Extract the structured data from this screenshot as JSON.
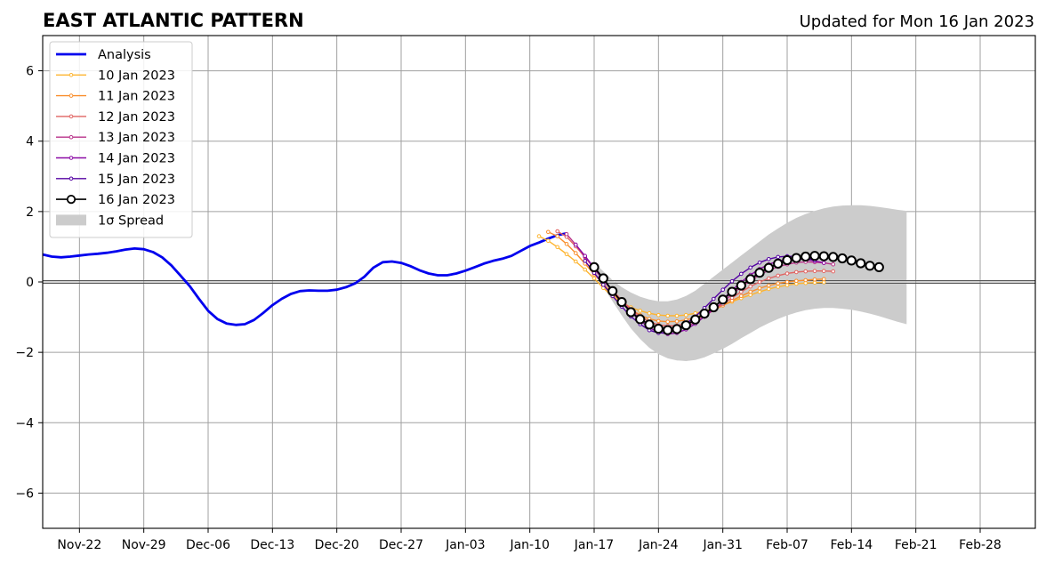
{
  "chart_data": {
    "type": "line",
    "title": "EAST ATLANTIC PATTERN",
    "subtitle": "Updated for Mon 16 Jan 2023",
    "xlabel": "",
    "ylabel": "",
    "x_axis": {
      "type": "date",
      "min": "2022-11-18",
      "max": "2023-03-06"
    },
    "ylim": [
      -7,
      7
    ],
    "yticks": [
      -6,
      -4,
      -2,
      0,
      2,
      4,
      6
    ],
    "ytick_labels": [
      "−6",
      "−4",
      "−2",
      "0",
      "2",
      "4",
      "6"
    ],
    "xticks": [
      {
        "date": "2022-11-22",
        "label": "Nov-22"
      },
      {
        "date": "2022-11-29",
        "label": "Nov-29"
      },
      {
        "date": "2022-12-06",
        "label": "Dec-06"
      },
      {
        "date": "2022-12-13",
        "label": "Dec-13"
      },
      {
        "date": "2022-12-20",
        "label": "Dec-20"
      },
      {
        "date": "2022-12-27",
        "label": "Dec-27"
      },
      {
        "date": "2023-01-03",
        "label": "Jan-03"
      },
      {
        "date": "2023-01-10",
        "label": "Jan-10"
      },
      {
        "date": "2023-01-17",
        "label": "Jan-17"
      },
      {
        "date": "2023-01-24",
        "label": "Jan-24"
      },
      {
        "date": "2023-01-31",
        "label": "Jan-31"
      },
      {
        "date": "2023-02-07",
        "label": "Feb-07"
      },
      {
        "date": "2023-02-14",
        "label": "Feb-14"
      },
      {
        "date": "2023-02-21",
        "label": "Feb-21"
      },
      {
        "date": "2023-02-28",
        "label": "Feb-28"
      }
    ],
    "grid": true,
    "legend_position": "top-left",
    "legend": [
      "Analysis",
      "10 Jan 2023",
      "11 Jan 2023",
      "12 Jan 2023",
      "13 Jan 2023",
      "14 Jan 2023",
      "15 Jan 2023",
      "16 Jan 2023",
      "1σ Spread"
    ],
    "analysis": {
      "name": "Analysis",
      "color": "#0000ee",
      "start_date": "2022-11-18",
      "values": [
        0.78,
        0.72,
        0.7,
        0.72,
        0.75,
        0.78,
        0.8,
        0.83,
        0.87,
        0.92,
        0.95,
        0.93,
        0.85,
        0.7,
        0.47,
        0.18,
        -0.12,
        -0.48,
        -0.82,
        -1.05,
        -1.18,
        -1.22,
        -1.2,
        -1.08,
        -0.88,
        -0.66,
        -0.48,
        -0.34,
        -0.26,
        -0.24,
        -0.25,
        -0.25,
        -0.22,
        -0.15,
        -0.04,
        0.15,
        0.41,
        0.56,
        0.58,
        0.54,
        0.45,
        0.33,
        0.24,
        0.19,
        0.19,
        0.24,
        0.32,
        0.42,
        0.52,
        0.6,
        0.66,
        0.74,
        0.88,
        1.02,
        1.12,
        1.23,
        1.33,
        1.38
      ]
    },
    "forecasts": [
      {
        "name": "10 Jan 2023",
        "color": "#fdb42f",
        "start_date": "2023-01-11",
        "values": [
          1.3,
          1.17,
          0.99,
          0.79,
          0.58,
          0.35,
          0.1,
          -0.17,
          -0.41,
          -0.59,
          -0.72,
          -0.82,
          -0.89,
          -0.94,
          -0.96,
          -0.96,
          -0.94,
          -0.89,
          -0.83,
          -0.75,
          -0.66,
          -0.56,
          -0.46,
          -0.37,
          -0.28,
          -0.2,
          -0.14,
          -0.09,
          -0.05,
          -0.03,
          -0.02,
          -0.01
        ]
      },
      {
        "name": "11 Jan 2023",
        "color": "#f98e2c",
        "start_date": "2023-01-12",
        "values": [
          1.42,
          1.3,
          1.08,
          0.82,
          0.52,
          0.22,
          -0.06,
          -0.33,
          -0.57,
          -0.78,
          -0.94,
          -1.05,
          -1.11,
          -1.13,
          -1.12,
          -1.08,
          -1.01,
          -0.92,
          -0.8,
          -0.67,
          -0.53,
          -0.4,
          -0.28,
          -0.18,
          -0.1,
          -0.04,
          0.0,
          0.03,
          0.05,
          0.07,
          0.08
        ]
      },
      {
        "name": "12 Jan 2023",
        "color": "#e16462",
        "start_date": "2023-01-13",
        "values": [
          1.44,
          1.28,
          1.01,
          0.7,
          0.38,
          0.06,
          -0.24,
          -0.52,
          -0.77,
          -0.98,
          -1.13,
          -1.22,
          -1.25,
          -1.24,
          -1.18,
          -1.08,
          -0.96,
          -0.8,
          -0.63,
          -0.45,
          -0.28,
          -0.13,
          0.0,
          0.1,
          0.18,
          0.24,
          0.28,
          0.3,
          0.31,
          0.31,
          0.3
        ]
      },
      {
        "name": "13 Jan 2023",
        "color": "#b83289",
        "start_date": "2023-01-14",
        "values": [
          1.36,
          1.06,
          0.72,
          0.38,
          0.05,
          -0.27,
          -0.56,
          -0.82,
          -1.04,
          -1.21,
          -1.32,
          -1.36,
          -1.34,
          -1.27,
          -1.15,
          -0.99,
          -0.79,
          -0.57,
          -0.35,
          -0.14,
          0.04,
          0.2,
          0.33,
          0.43,
          0.5,
          0.55,
          0.57,
          0.56,
          0.54,
          0.5
        ]
      },
      {
        "name": "14 Jan 2023",
        "color": "#8b0aa5",
        "start_date": "2023-01-15",
        "values": [
          1.06,
          0.74,
          0.4,
          0.06,
          -0.27,
          -0.57,
          -0.85,
          -1.1,
          -1.3,
          -1.43,
          -1.48,
          -1.45,
          -1.35,
          -1.19,
          -0.98,
          -0.74,
          -0.49,
          -0.24,
          0.0,
          0.2,
          0.37,
          0.5,
          0.59,
          0.64,
          0.66,
          0.64,
          0.6,
          0.54
        ]
      },
      {
        "name": "15 Jan 2023",
        "color": "#5402a3",
        "start_date": "2023-01-16",
        "values": [
          0.6,
          0.26,
          -0.08,
          -0.4,
          -0.7,
          -0.98,
          -1.2,
          -1.37,
          -1.45,
          -1.44,
          -1.35,
          -1.19,
          -0.98,
          -0.74,
          -0.48,
          -0.22,
          0.02,
          0.23,
          0.41,
          0.55,
          0.65,
          0.71,
          0.73,
          0.72,
          0.68,
          0.62
        ]
      }
    ],
    "current": {
      "name": "16 Jan 2023",
      "color": "#000000",
      "start_date": "2023-01-17",
      "values": [
        0.42,
        0.1,
        -0.26,
        -0.57,
        -0.86,
        -1.06,
        -1.21,
        -1.33,
        -1.37,
        -1.34,
        -1.23,
        -1.07,
        -0.9,
        -0.72,
        -0.5,
        -0.28,
        -0.1,
        0.08,
        0.26,
        0.4,
        0.52,
        0.62,
        0.68,
        0.72,
        0.74,
        0.73,
        0.71,
        0.67,
        0.61,
        0.53,
        0.46,
        0.42
      ]
    },
    "spread": {
      "name": "1σ Spread",
      "color": "#cccccc",
      "start_date": "2023-01-17",
      "upper": [
        0.55,
        0.3,
        0.05,
        -0.15,
        -0.3,
        -0.42,
        -0.5,
        -0.55,
        -0.55,
        -0.5,
        -0.4,
        -0.25,
        -0.05,
        0.15,
        0.35,
        0.55,
        0.75,
        0.95,
        1.15,
        1.35,
        1.52,
        1.68,
        1.82,
        1.93,
        2.02,
        2.09,
        2.14,
        2.17,
        2.18,
        2.18,
        2.16,
        2.13,
        2.09,
        2.05,
        2.02
      ],
      "lower": [
        0.25,
        -0.15,
        -0.55,
        -0.95,
        -1.32,
        -1.62,
        -1.87,
        -2.05,
        -2.17,
        -2.23,
        -2.25,
        -2.22,
        -2.14,
        -2.03,
        -1.9,
        -1.76,
        -1.6,
        -1.45,
        -1.3,
        -1.17,
        -1.05,
        -0.95,
        -0.87,
        -0.8,
        -0.76,
        -0.74,
        -0.74,
        -0.76,
        -0.79,
        -0.84,
        -0.9,
        -0.97,
        -1.05,
        -1.13,
        -1.2
      ]
    }
  }
}
